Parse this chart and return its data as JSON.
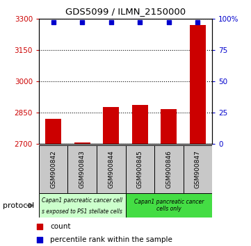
{
  "title": "GDS5099 / ILMN_2150000",
  "samples": [
    "GSM900842",
    "GSM900843",
    "GSM900844",
    "GSM900845",
    "GSM900846",
    "GSM900847"
  ],
  "counts": [
    2820,
    2707,
    2878,
    2888,
    2868,
    3270
  ],
  "percentiles": [
    97,
    97,
    97,
    97,
    97,
    97
  ],
  "ylim_left": [
    2700,
    3300
  ],
  "ylim_right": [
    0,
    100
  ],
  "yticks_left": [
    2700,
    2850,
    3000,
    3150,
    3300
  ],
  "yticks_right": [
    0,
    25,
    50,
    75,
    100
  ],
  "bar_color": "#cc0000",
  "dot_color": "#0000cc",
  "group1_label_line1": "Capan1 pancreatic cancer cell",
  "group1_label_line2": "s exposed to PS1 stellate cells",
  "group1_color": "#ccffcc",
  "group2_label": "Capan1 pancreatic cancer\ncells only",
  "group2_color": "#44dd44",
  "protocol_label": "protocol",
  "legend_count_label": "count",
  "legend_percentile_label": "percentile rank within the sample",
  "left_tick_color": "#cc0000",
  "right_tick_color": "#0000cc"
}
